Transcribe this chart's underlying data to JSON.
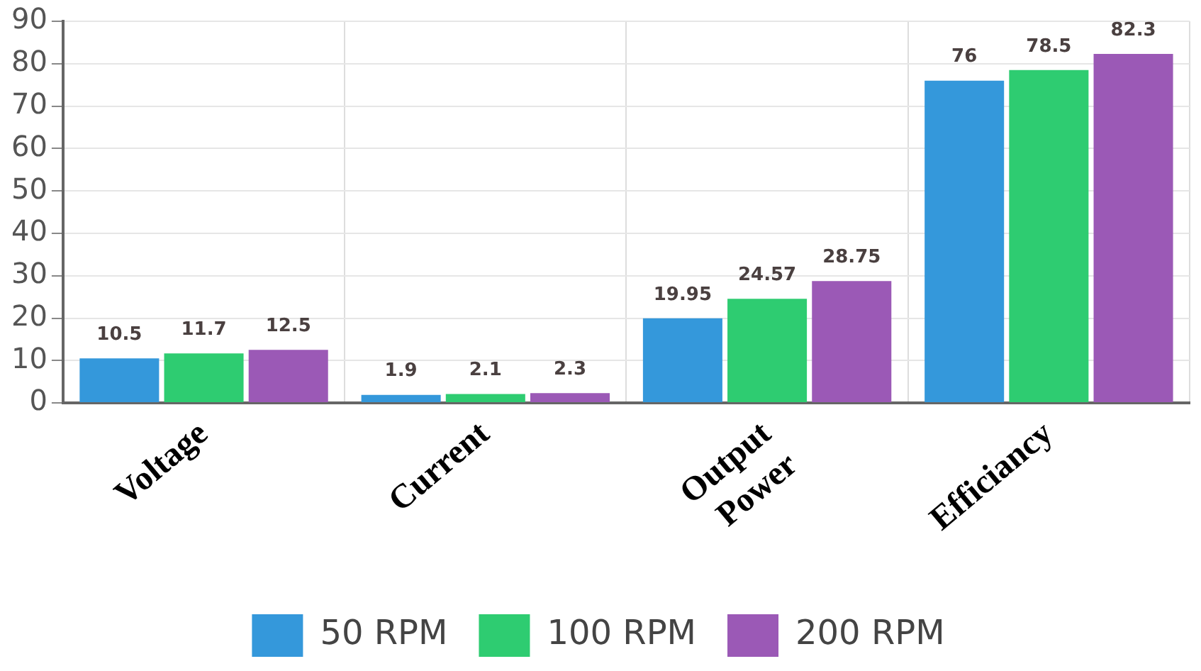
{
  "chart_data": {
    "type": "bar",
    "categories": [
      "Voltage",
      "Current",
      "Output Power",
      "Efficiancy"
    ],
    "series": [
      {
        "name": "50 RPM",
        "color": "#3498db",
        "values": [
          10.5,
          1.9,
          19.95,
          76
        ]
      },
      {
        "name": "100 RPM",
        "color": "#2ecc71",
        "values": [
          11.7,
          2.1,
          24.57,
          78.5
        ]
      },
      {
        "name": "200 RPM",
        "color": "#9b59b6",
        "values": [
          12.5,
          2.3,
          28.75,
          82.3
        ]
      }
    ],
    "ylim": [
      0,
      90
    ],
    "yticks": [
      0,
      10,
      20,
      30,
      40,
      50,
      60,
      70,
      80,
      90
    ],
    "grid": true,
    "legend": "bottom",
    "data_labels": true
  }
}
